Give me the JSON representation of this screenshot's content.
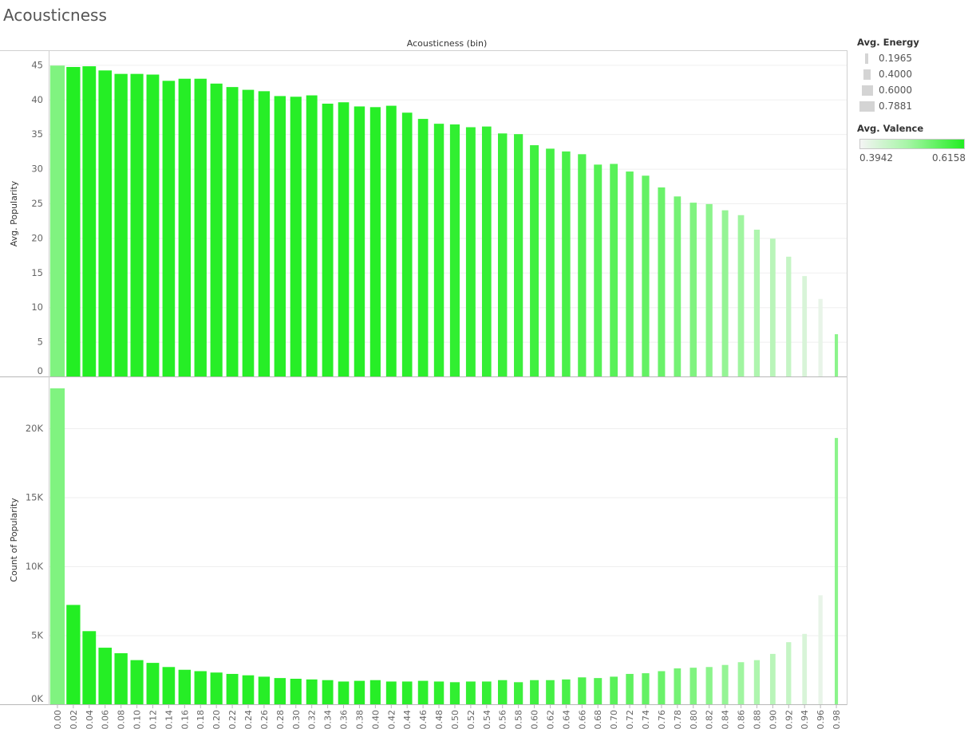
{
  "page": {
    "title": "Acousticness"
  },
  "legend": {
    "energy_title": "Avg. Energy",
    "energy_items": [
      "0.1965",
      "0.4000",
      "0.6000",
      "0.7881"
    ],
    "valence_title": "Avg. Valence",
    "valence_min": "0.3942",
    "valence_max": "0.6158",
    "valence_colors": {
      "low": "#f4f4f4",
      "mid": "#a7f5a7",
      "high": "#22ee22"
    }
  },
  "chart_data": {
    "type": "bar",
    "column_header": "Acousticness (bin)",
    "categories": [
      "0.00",
      "0.02",
      "0.04",
      "0.06",
      "0.08",
      "0.10",
      "0.12",
      "0.14",
      "0.16",
      "0.18",
      "0.20",
      "0.22",
      "0.24",
      "0.26",
      "0.28",
      "0.30",
      "0.32",
      "0.34",
      "0.36",
      "0.38",
      "0.40",
      "0.42",
      "0.44",
      "0.46",
      "0.48",
      "0.50",
      "0.52",
      "0.54",
      "0.56",
      "0.58",
      "0.60",
      "0.62",
      "0.64",
      "0.66",
      "0.68",
      "0.70",
      "0.72",
      "0.74",
      "0.76",
      "0.78",
      "0.80",
      "0.82",
      "0.84",
      "0.86",
      "0.88",
      "0.90",
      "0.92",
      "0.94",
      "0.96",
      "0.98"
    ],
    "size_encoding": "Avg. Energy",
    "color_encoding": "Avg. Valence",
    "panels": [
      {
        "ylabel": "Avg. Popularity",
        "ylim": [
          0,
          47
        ],
        "yticks": [
          0,
          5,
          10,
          15,
          20,
          25,
          30,
          35,
          40,
          45
        ],
        "ytick_labels": [
          "0",
          "5",
          "10",
          "15",
          "20",
          "25",
          "30",
          "35",
          "40",
          "45"
        ],
        "values": [
          44.9,
          44.7,
          44.8,
          44.2,
          43.7,
          43.7,
          43.6,
          42.7,
          43.0,
          43.0,
          42.3,
          41.8,
          41.4,
          41.2,
          40.5,
          40.4,
          40.6,
          39.4,
          39.6,
          39.0,
          38.9,
          39.1,
          38.1,
          37.2,
          36.5,
          36.4,
          36.0,
          36.1,
          35.1,
          35.0,
          33.4,
          32.9,
          32.5,
          32.1,
          30.6,
          30.7,
          29.6,
          29.0,
          27.3,
          26.0,
          25.1,
          24.9,
          24.0,
          23.3,
          21.2,
          19.9,
          17.3,
          14.5,
          11.2,
          6.1
        ]
      },
      {
        "ylabel": "Count of Popularity",
        "ylim": [
          0,
          23700
        ],
        "yticks": [
          0,
          5000,
          10000,
          15000,
          20000
        ],
        "ytick_labels": [
          "0K",
          "5K",
          "10K",
          "15K",
          "20K"
        ],
        "values": [
          22900,
          7200,
          5300,
          4100,
          3700,
          3200,
          3000,
          2700,
          2500,
          2400,
          2300,
          2200,
          2100,
          2000,
          1900,
          1850,
          1800,
          1750,
          1650,
          1700,
          1750,
          1650,
          1650,
          1700,
          1650,
          1600,
          1650,
          1650,
          1750,
          1600,
          1750,
          1750,
          1800,
          1950,
          1900,
          2000,
          2200,
          2250,
          2400,
          2600,
          2650,
          2700,
          2850,
          3050,
          3200,
          3650,
          4500,
          5100,
          7900,
          19300
        ]
      },
      {
        "name": "encodings",
        "energy": [
          0.78,
          0.74,
          0.72,
          0.71,
          0.7,
          0.69,
          0.68,
          0.67,
          0.66,
          0.66,
          0.65,
          0.64,
          0.63,
          0.62,
          0.62,
          0.61,
          0.6,
          0.6,
          0.59,
          0.58,
          0.57,
          0.56,
          0.55,
          0.55,
          0.54,
          0.53,
          0.52,
          0.51,
          0.5,
          0.49,
          0.48,
          0.47,
          0.46,
          0.45,
          0.44,
          0.43,
          0.42,
          0.41,
          0.4,
          0.39,
          0.38,
          0.37,
          0.36,
          0.35,
          0.33,
          0.31,
          0.29,
          0.27,
          0.25,
          0.2
        ],
        "valence": [
          0.53,
          0.615,
          0.615,
          0.613,
          0.612,
          0.612,
          0.612,
          0.612,
          0.612,
          0.611,
          0.611,
          0.611,
          0.611,
          0.611,
          0.611,
          0.611,
          0.611,
          0.611,
          0.611,
          0.611,
          0.611,
          0.61,
          0.608,
          0.606,
          0.604,
          0.602,
          0.6,
          0.598,
          0.595,
          0.592,
          0.588,
          0.584,
          0.58,
          0.575,
          0.57,
          0.565,
          0.56,
          0.555,
          0.55,
          0.54,
          0.53,
          0.52,
          0.51,
          0.5,
          0.485,
          0.47,
          0.455,
          0.43,
          0.41,
          0.52
        ]
      }
    ]
  }
}
